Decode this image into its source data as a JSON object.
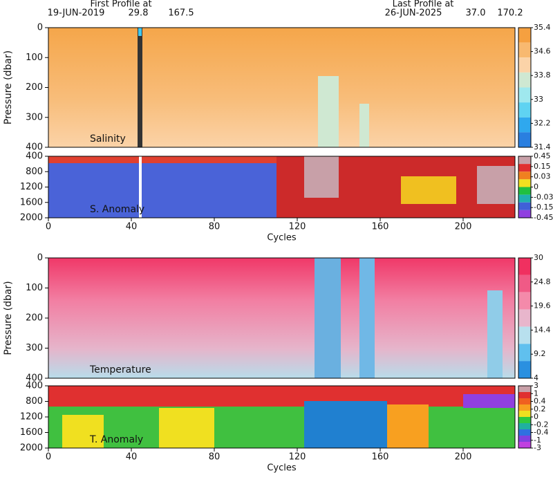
{
  "header": {
    "first_label": "First Profile at",
    "first_date": "19-JUN-2019",
    "first_lat": "29.8",
    "first_lon": "167.5",
    "last_label": "Last Profile at",
    "last_date": "26-JUN-2025",
    "last_lat": "37.0",
    "last_lon": "170.2"
  },
  "chart_data": [
    {
      "type": "heatmap",
      "label": "Salinity",
      "y_label": "Pressure (dbar)",
      "xlim": [
        0,
        225
      ],
      "ylim": [
        0,
        400
      ],
      "yticks": [
        0,
        100,
        200,
        300,
        400
      ],
      "colorbar": {
        "ticks": [
          35.4,
          34.6,
          33.8,
          33,
          32.2,
          31.4
        ],
        "colors": [
          "#f5a040",
          "#f8b970",
          "#fbd3a8",
          "#cfe8d2",
          "#9fe8ee",
          "#5fd3f2",
          "#2fa8ee",
          "#2a7fe0"
        ]
      }
    },
    {
      "type": "heatmap",
      "label": "S. Anomaly",
      "x_label": "Cycles",
      "xlim": [
        0,
        225
      ],
      "xticks": [
        0,
        40,
        80,
        120,
        160,
        200
      ],
      "ylim": [
        400,
        2000
      ],
      "yticks": [
        400,
        800,
        1200,
        1600,
        2000
      ],
      "colorbar": {
        "ticks": [
          0.45,
          0.15,
          0.03,
          0,
          -0.03,
          -0.15,
          -0.45
        ],
        "colors": [
          "#c8a0a8",
          "#e03030",
          "#f08020",
          "#f0e020",
          "#20c040",
          "#20b0b0",
          "#4060d8",
          "#9040e0"
        ]
      }
    },
    {
      "type": "heatmap",
      "label": "Temperature",
      "y_label": "Pressure (dbar)",
      "xlim": [
        0,
        225
      ],
      "ylim": [
        0,
        400
      ],
      "yticks": [
        0,
        100,
        200,
        300,
        400
      ],
      "colorbar": {
        "ticks": [
          30,
          24.8,
          19.6,
          14.4,
          9.2,
          4
        ],
        "colors": [
          "#f03060",
          "#f05a86",
          "#f48aaa",
          "#e8b6cc",
          "#b8e0ee",
          "#60c0ee",
          "#2a90e0"
        ]
      }
    },
    {
      "type": "heatmap",
      "label": "T. Anomaly",
      "x_label": "Cycles",
      "xlim": [
        0,
        225
      ],
      "xticks": [
        0,
        40,
        80,
        120,
        160,
        200
      ],
      "ylim": [
        400,
        2000
      ],
      "yticks": [
        400,
        800,
        1200,
        1600,
        2000
      ],
      "colorbar": {
        "ticks": [
          3,
          1,
          0.4,
          0.2,
          0,
          -0.2,
          -0.4,
          -1,
          -3
        ],
        "colors": [
          "#c8a0a8",
          "#e03030",
          "#f06020",
          "#f8a020",
          "#f0e020",
          "#30c840",
          "#20b0a0",
          "#3070e0",
          "#8040e0",
          "#c040e0"
        ]
      }
    }
  ]
}
